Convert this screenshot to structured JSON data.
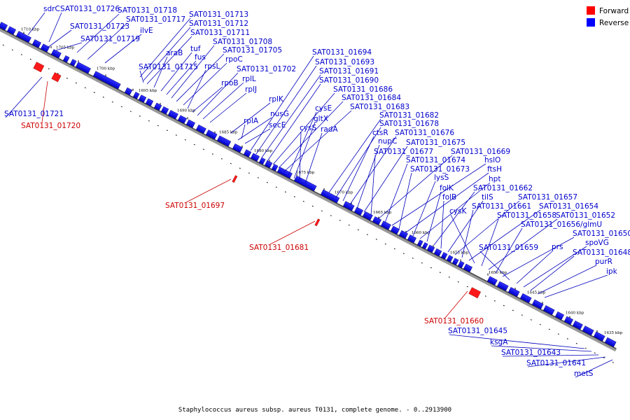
{
  "legend": {
    "forward_label": "Forward",
    "reverse_label": "Reverse",
    "forward_color": "#ff0000",
    "reverse_color": "#0000ff"
  },
  "caption": "Staphylococcus aureus subsp. aureus T0131, complete genome. - 0..2913900",
  "scale_ticks": [
    "1710 kbp",
    "1705 kbp",
    "1700 kbp",
    "1695 kbp",
    "1690 kbp",
    "1685 kbp",
    "1680 kbp",
    "1675 kbp",
    "1670 kbp",
    "1665 kbp",
    "1660 kbp",
    "1655 kbp",
    "1650 kbp",
    "1645 kbp",
    "1640 kbp",
    "1635 kbp"
  ],
  "reverse_labels": [
    "sdrC",
    "SAT0131_01726",
    "SAT0131_01718",
    "SAT0131_01717",
    "SAT0131_01723",
    "ilvE",
    "SAT0131_01719",
    "SAT0131_01713",
    "SAT0131_01712",
    "SAT0131_01711",
    "araB",
    "tuf",
    "fus",
    "SAT0131_01708",
    "SAT0131_01705",
    "rpoC",
    "SAT0131_01715",
    "rpsL",
    "rpoB",
    "SAT0131_01702",
    "rplL",
    "rplJ",
    "rplK",
    "nusG",
    "secE",
    "rplA",
    "SAT0131_01694",
    "SAT0131_01693",
    "SAT0131_01691",
    "SAT0131_01690",
    "SAT0131_01686",
    "SAT0131_01684",
    "SAT0131_01683",
    "cysE",
    "gltX",
    "cysS",
    "radA",
    "SAT0131_01682",
    "SAT0131_01678",
    "ctsR",
    "SAT0131_01676",
    "nupC",
    "SAT0131_01675",
    "SAT0131_01677",
    "SAT0131_01669",
    "SAT0131_01674",
    "hslO",
    "SAT0131_01673",
    "ftsH",
    "lysS",
    "hpt",
    "folK",
    "SAT0131_01662",
    "folB",
    "tilS",
    "SAT0131_01657",
    "SAT0131_01661",
    "SAT0131_01654",
    "cysK",
    "SAT0131_01658",
    "SAT0131_01652",
    "SAT0131_01656/glmU",
    "SAT0131_01650",
    "SAT0131_01659",
    "prs",
    "spoVG",
    "SAT0131_01648",
    "purR",
    "ipk",
    "SAT0131_01721",
    "SAT0131_01645",
    "ksgA",
    "SAT0131_01643",
    "SAT0131_01641",
    "metS"
  ],
  "forward_labels": [
    "SAT0131_01720",
    "SAT0131_01697",
    "SAT0131_01681",
    "SAT0131_01660"
  ]
}
